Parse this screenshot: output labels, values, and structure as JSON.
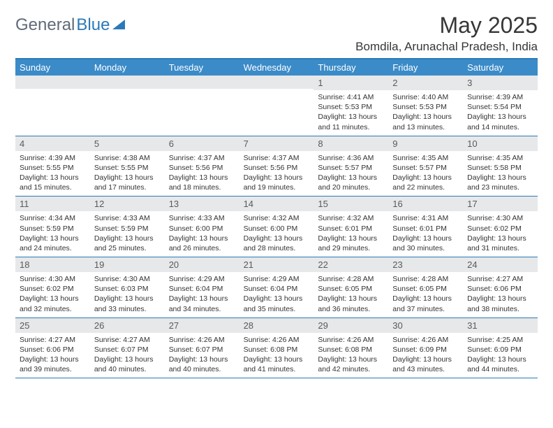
{
  "brand": {
    "part1": "General",
    "part2": "Blue",
    "part2_color": "#2a7ab9"
  },
  "title": "May 2025",
  "location": "Bomdila, Arunachal Pradesh, India",
  "colors": {
    "header_bg": "#3b8bc8",
    "border": "#2a7ab9",
    "daynum_bg": "#e7e8e9",
    "text": "#333333"
  },
  "day_labels": [
    "Sunday",
    "Monday",
    "Tuesday",
    "Wednesday",
    "Thursday",
    "Friday",
    "Saturday"
  ],
  "weeks": [
    [
      {
        "n": "",
        "sr": "",
        "ss": "",
        "dl": ""
      },
      {
        "n": "",
        "sr": "",
        "ss": "",
        "dl": ""
      },
      {
        "n": "",
        "sr": "",
        "ss": "",
        "dl": ""
      },
      {
        "n": "",
        "sr": "",
        "ss": "",
        "dl": ""
      },
      {
        "n": "1",
        "sr": "Sunrise: 4:41 AM",
        "ss": "Sunset: 5:53 PM",
        "dl": "Daylight: 13 hours and 11 minutes."
      },
      {
        "n": "2",
        "sr": "Sunrise: 4:40 AM",
        "ss": "Sunset: 5:53 PM",
        "dl": "Daylight: 13 hours and 13 minutes."
      },
      {
        "n": "3",
        "sr": "Sunrise: 4:39 AM",
        "ss": "Sunset: 5:54 PM",
        "dl": "Daylight: 13 hours and 14 minutes."
      }
    ],
    [
      {
        "n": "4",
        "sr": "Sunrise: 4:39 AM",
        "ss": "Sunset: 5:55 PM",
        "dl": "Daylight: 13 hours and 15 minutes."
      },
      {
        "n": "5",
        "sr": "Sunrise: 4:38 AM",
        "ss": "Sunset: 5:55 PM",
        "dl": "Daylight: 13 hours and 17 minutes."
      },
      {
        "n": "6",
        "sr": "Sunrise: 4:37 AM",
        "ss": "Sunset: 5:56 PM",
        "dl": "Daylight: 13 hours and 18 minutes."
      },
      {
        "n": "7",
        "sr": "Sunrise: 4:37 AM",
        "ss": "Sunset: 5:56 PM",
        "dl": "Daylight: 13 hours and 19 minutes."
      },
      {
        "n": "8",
        "sr": "Sunrise: 4:36 AM",
        "ss": "Sunset: 5:57 PM",
        "dl": "Daylight: 13 hours and 20 minutes."
      },
      {
        "n": "9",
        "sr": "Sunrise: 4:35 AM",
        "ss": "Sunset: 5:57 PM",
        "dl": "Daylight: 13 hours and 22 minutes."
      },
      {
        "n": "10",
        "sr": "Sunrise: 4:35 AM",
        "ss": "Sunset: 5:58 PM",
        "dl": "Daylight: 13 hours and 23 minutes."
      }
    ],
    [
      {
        "n": "11",
        "sr": "Sunrise: 4:34 AM",
        "ss": "Sunset: 5:59 PM",
        "dl": "Daylight: 13 hours and 24 minutes."
      },
      {
        "n": "12",
        "sr": "Sunrise: 4:33 AM",
        "ss": "Sunset: 5:59 PM",
        "dl": "Daylight: 13 hours and 25 minutes."
      },
      {
        "n": "13",
        "sr": "Sunrise: 4:33 AM",
        "ss": "Sunset: 6:00 PM",
        "dl": "Daylight: 13 hours and 26 minutes."
      },
      {
        "n": "14",
        "sr": "Sunrise: 4:32 AM",
        "ss": "Sunset: 6:00 PM",
        "dl": "Daylight: 13 hours and 28 minutes."
      },
      {
        "n": "15",
        "sr": "Sunrise: 4:32 AM",
        "ss": "Sunset: 6:01 PM",
        "dl": "Daylight: 13 hours and 29 minutes."
      },
      {
        "n": "16",
        "sr": "Sunrise: 4:31 AM",
        "ss": "Sunset: 6:01 PM",
        "dl": "Daylight: 13 hours and 30 minutes."
      },
      {
        "n": "17",
        "sr": "Sunrise: 4:30 AM",
        "ss": "Sunset: 6:02 PM",
        "dl": "Daylight: 13 hours and 31 minutes."
      }
    ],
    [
      {
        "n": "18",
        "sr": "Sunrise: 4:30 AM",
        "ss": "Sunset: 6:02 PM",
        "dl": "Daylight: 13 hours and 32 minutes."
      },
      {
        "n": "19",
        "sr": "Sunrise: 4:30 AM",
        "ss": "Sunset: 6:03 PM",
        "dl": "Daylight: 13 hours and 33 minutes."
      },
      {
        "n": "20",
        "sr": "Sunrise: 4:29 AM",
        "ss": "Sunset: 6:04 PM",
        "dl": "Daylight: 13 hours and 34 minutes."
      },
      {
        "n": "21",
        "sr": "Sunrise: 4:29 AM",
        "ss": "Sunset: 6:04 PM",
        "dl": "Daylight: 13 hours and 35 minutes."
      },
      {
        "n": "22",
        "sr": "Sunrise: 4:28 AM",
        "ss": "Sunset: 6:05 PM",
        "dl": "Daylight: 13 hours and 36 minutes."
      },
      {
        "n": "23",
        "sr": "Sunrise: 4:28 AM",
        "ss": "Sunset: 6:05 PM",
        "dl": "Daylight: 13 hours and 37 minutes."
      },
      {
        "n": "24",
        "sr": "Sunrise: 4:27 AM",
        "ss": "Sunset: 6:06 PM",
        "dl": "Daylight: 13 hours and 38 minutes."
      }
    ],
    [
      {
        "n": "25",
        "sr": "Sunrise: 4:27 AM",
        "ss": "Sunset: 6:06 PM",
        "dl": "Daylight: 13 hours and 39 minutes."
      },
      {
        "n": "26",
        "sr": "Sunrise: 4:27 AM",
        "ss": "Sunset: 6:07 PM",
        "dl": "Daylight: 13 hours and 40 minutes."
      },
      {
        "n": "27",
        "sr": "Sunrise: 4:26 AM",
        "ss": "Sunset: 6:07 PM",
        "dl": "Daylight: 13 hours and 40 minutes."
      },
      {
        "n": "28",
        "sr": "Sunrise: 4:26 AM",
        "ss": "Sunset: 6:08 PM",
        "dl": "Daylight: 13 hours and 41 minutes."
      },
      {
        "n": "29",
        "sr": "Sunrise: 4:26 AM",
        "ss": "Sunset: 6:08 PM",
        "dl": "Daylight: 13 hours and 42 minutes."
      },
      {
        "n": "30",
        "sr": "Sunrise: 4:26 AM",
        "ss": "Sunset: 6:09 PM",
        "dl": "Daylight: 13 hours and 43 minutes."
      },
      {
        "n": "31",
        "sr": "Sunrise: 4:25 AM",
        "ss": "Sunset: 6:09 PM",
        "dl": "Daylight: 13 hours and 44 minutes."
      }
    ]
  ]
}
